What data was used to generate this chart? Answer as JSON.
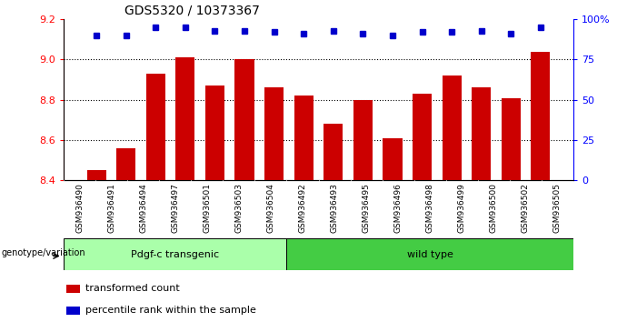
{
  "title": "GDS5320 / 10373367",
  "samples": [
    "GSM936490",
    "GSM936491",
    "GSM936494",
    "GSM936497",
    "GSM936501",
    "GSM936503",
    "GSM936504",
    "GSM936492",
    "GSM936493",
    "GSM936495",
    "GSM936496",
    "GSM936498",
    "GSM936499",
    "GSM936500",
    "GSM936502",
    "GSM936505"
  ],
  "bar_values": [
    8.45,
    8.56,
    8.93,
    9.01,
    8.87,
    9.0,
    8.86,
    8.82,
    8.68,
    8.8,
    8.61,
    8.83,
    8.92,
    8.86,
    8.81,
    9.04
  ],
  "percentile_values": [
    90,
    90,
    95,
    95,
    93,
    93,
    92,
    91,
    93,
    91,
    90,
    92,
    92,
    93,
    91,
    95
  ],
  "bar_color": "#cc0000",
  "dot_color": "#0000cc",
  "ylim_left": [
    8.4,
    9.2
  ],
  "ylim_right": [
    0,
    100
  ],
  "yticks_left": [
    8.4,
    8.6,
    8.8,
    9.0,
    9.2
  ],
  "yticks_right": [
    0,
    25,
    50,
    75,
    100
  ],
  "ytick_labels_right": [
    "0",
    "25",
    "50",
    "75",
    "100%"
  ],
  "group1_label": "Pdgf-c transgenic",
  "group2_label": "wild type",
  "group1_count": 7,
  "group2_count": 9,
  "group1_color": "#aaffaa",
  "group2_color": "#44cc44",
  "xaxis_label": "genotype/variation",
  "legend_bar_label": "transformed count",
  "legend_dot_label": "percentile rank within the sample",
  "plot_bg": "#ffffff",
  "tick_area_bg": "#cccccc",
  "gridline_color": "#000000",
  "title_fontsize": 10,
  "bar_fontsize": 7,
  "label_fontsize": 8
}
